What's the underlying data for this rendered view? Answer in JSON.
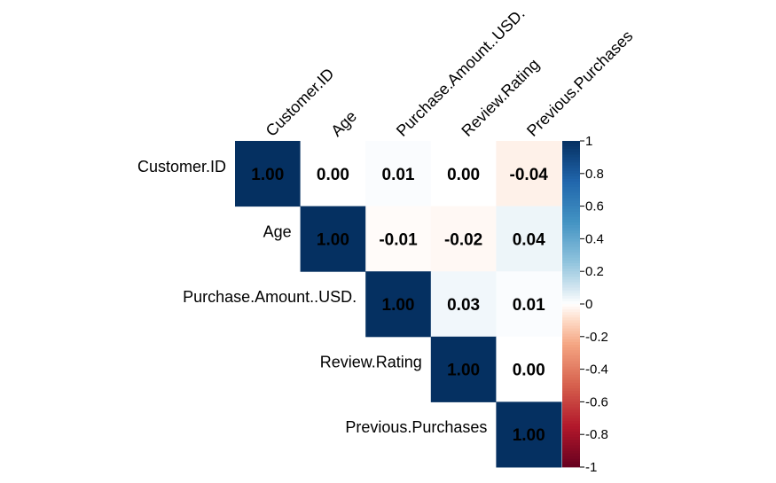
{
  "chart_data": {
    "type": "heatmap",
    "variables": [
      "Customer.ID",
      "Age",
      "Purchase.Amount..USD.",
      "Review.Rating",
      "Previous.Purchases"
    ],
    "matrix": [
      [
        1.0,
        0.0,
        0.01,
        0.0,
        -0.04
      ],
      [
        null,
        1.0,
        -0.01,
        -0.02,
        0.04
      ],
      [
        null,
        null,
        1.0,
        0.03,
        0.01
      ],
      [
        null,
        null,
        null,
        1.0,
        0.0
      ],
      [
        null,
        null,
        null,
        null,
        1.0
      ]
    ],
    "cell_labels": [
      [
        "1.00",
        "0.00",
        "0.01",
        "0.00",
        "-0.04"
      ],
      [
        "",
        "1.00",
        "-0.01",
        "-0.02",
        "0.04"
      ],
      [
        "",
        "",
        "1.00",
        "0.03",
        "0.01"
      ],
      [
        "",
        "",
        "",
        "1.00",
        "0.00"
      ],
      [
        "",
        "",
        "",
        "",
        "1.00"
      ]
    ],
    "layout": "upper-triangle",
    "value_range": [
      -1,
      1
    ],
    "colorbar": {
      "placement": "right",
      "ticks": [
        1,
        0.8,
        0.6,
        0.4,
        0.2,
        0,
        -0.2,
        -0.4,
        -0.6,
        -0.8,
        -1
      ],
      "tick_labels": [
        "1",
        "0.8",
        "0.6",
        "0.4",
        "0.2",
        "0",
        "-0.2",
        "-0.4",
        "-0.6",
        "-0.8",
        "-1"
      ]
    },
    "colors": {
      "negative": "#67001F",
      "neutral": "#FFFFFF",
      "positive": "#053061"
    },
    "grid": false
  }
}
